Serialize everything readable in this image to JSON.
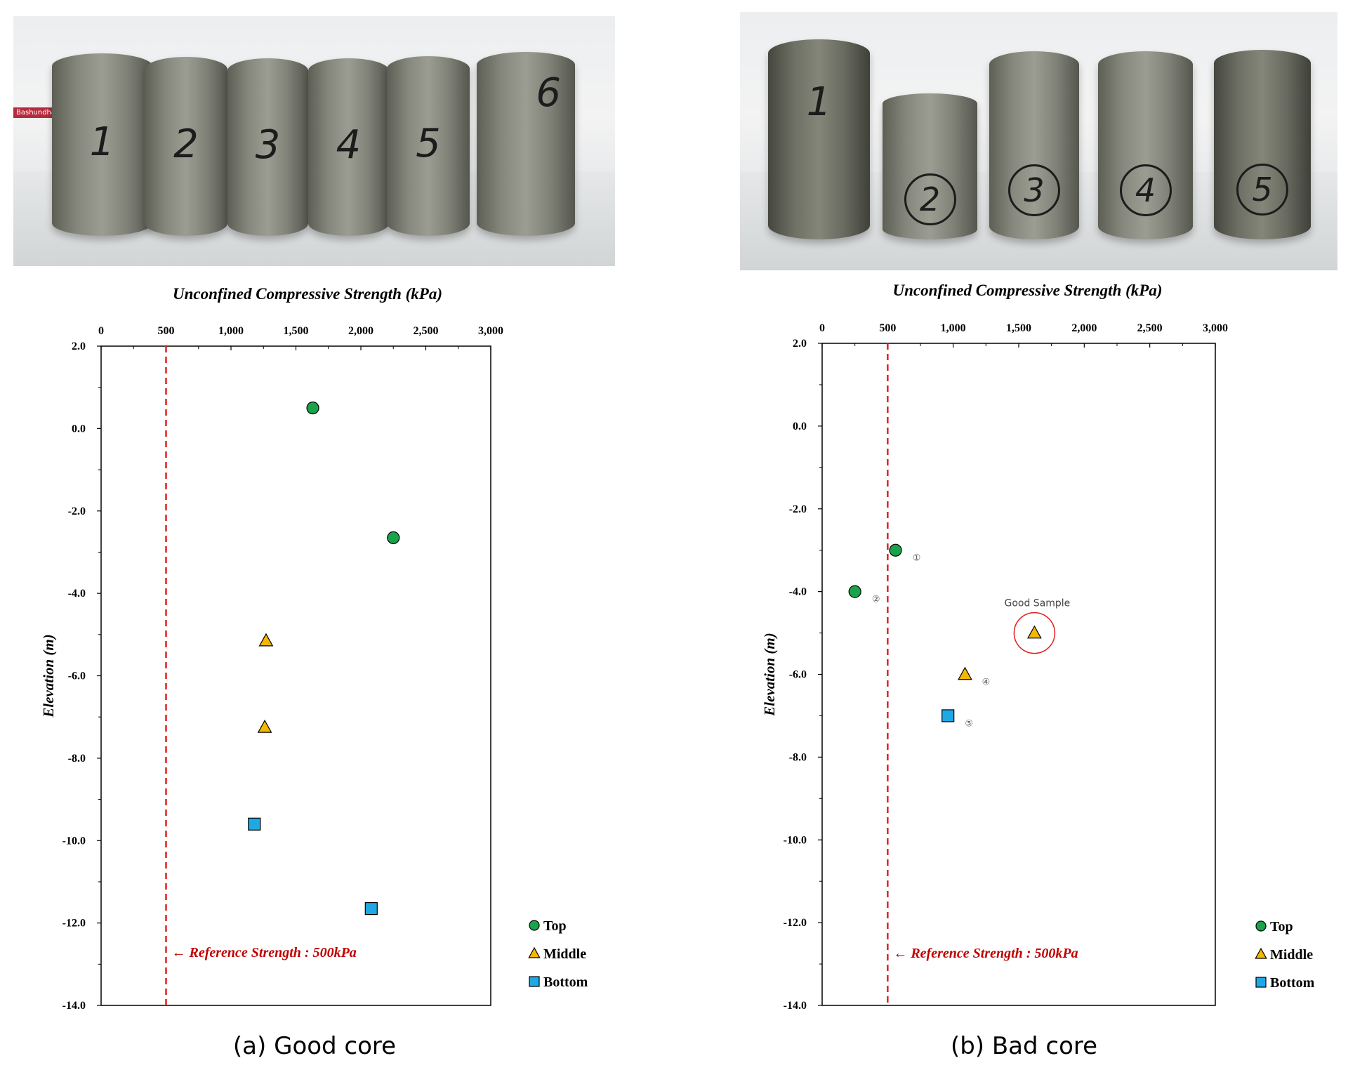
{
  "photos": {
    "good_core_labels": [
      "1",
      "2",
      "3",
      "4",
      "5",
      "6"
    ],
    "bad_core_labels": [
      "1",
      "2",
      "3",
      "4",
      "5"
    ]
  },
  "colors": {
    "top": "#1aa34a",
    "middle": "#f5b800",
    "bottom": "#1fa8e4",
    "reference_line": "#e02020",
    "good_sample_circle": "#e02020"
  },
  "chart_data": [
    {
      "type": "scatter",
      "title": "Unconfined Compressive Strength (kPa)",
      "ylabel": "Elevation (m)",
      "xlim": [
        0,
        3000
      ],
      "ylim": [
        -14.0,
        2.0
      ],
      "x_axis_position": "top",
      "x_ticks": [
        "0",
        "500",
        "1,000",
        "1,500",
        "2,000",
        "2,500",
        "3,000"
      ],
      "y_ticks": [
        "2.0",
        "0.0",
        "-2.0",
        "-4.0",
        "-6.0",
        "-8.0",
        "-10.0",
        "-12.0",
        "-14.0"
      ],
      "grid": false,
      "legend": "bottom-right outside",
      "series": [
        {
          "name": "Top",
          "marker": "circle",
          "points": [
            {
              "x": 1630,
              "y": 0.5
            },
            {
              "x": 2250,
              "y": -2.65
            }
          ]
        },
        {
          "name": "Middle",
          "marker": "triangle",
          "points": [
            {
              "x": 1270,
              "y": -5.15
            },
            {
              "x": 1260,
              "y": -7.25
            }
          ]
        },
        {
          "name": "Bottom",
          "marker": "square",
          "points": [
            {
              "x": 1180,
              "y": -9.6
            },
            {
              "x": 2080,
              "y": -11.65
            }
          ]
        }
      ],
      "reference_line": {
        "x": 500,
        "label": "← Reference Strength : 500kPa"
      },
      "caption": "(a) Good core"
    },
    {
      "type": "scatter",
      "title": "Unconfined Compressive Strength (kPa)",
      "ylabel": "Elevation (m)",
      "xlim": [
        0,
        3000
      ],
      "ylim": [
        -14.0,
        2.0
      ],
      "x_axis_position": "top",
      "x_ticks": [
        "0",
        "500",
        "1,000",
        "1,500",
        "2,000",
        "2,500",
        "3,000"
      ],
      "y_ticks": [
        "2.0",
        "0.0",
        "-2.0",
        "-4.0",
        "-6.0",
        "-8.0",
        "-10.0",
        "-12.0",
        "-14.0"
      ],
      "grid": false,
      "legend": "bottom-right outside",
      "series": [
        {
          "name": "Top",
          "marker": "circle",
          "points": [
            {
              "x": 560,
              "y": -3.0,
              "label": "①"
            },
            {
              "x": 250,
              "y": -4.0,
              "label": "②"
            }
          ]
        },
        {
          "name": "Middle",
          "marker": "triangle",
          "points": [
            {
              "x": 1620,
              "y": -5.0
            },
            {
              "x": 1090,
              "y": -6.0,
              "label": "④"
            }
          ]
        },
        {
          "name": "Bottom",
          "marker": "square",
          "points": [
            {
              "x": 960,
              "y": -7.0,
              "label": "⑤"
            }
          ]
        }
      ],
      "reference_line": {
        "x": 500,
        "label": "← Reference Strength : 500kPa"
      },
      "annotation": {
        "text": "Good Sample",
        "x": 1620,
        "y": -5.0
      },
      "caption": "(b) Bad core"
    }
  ]
}
